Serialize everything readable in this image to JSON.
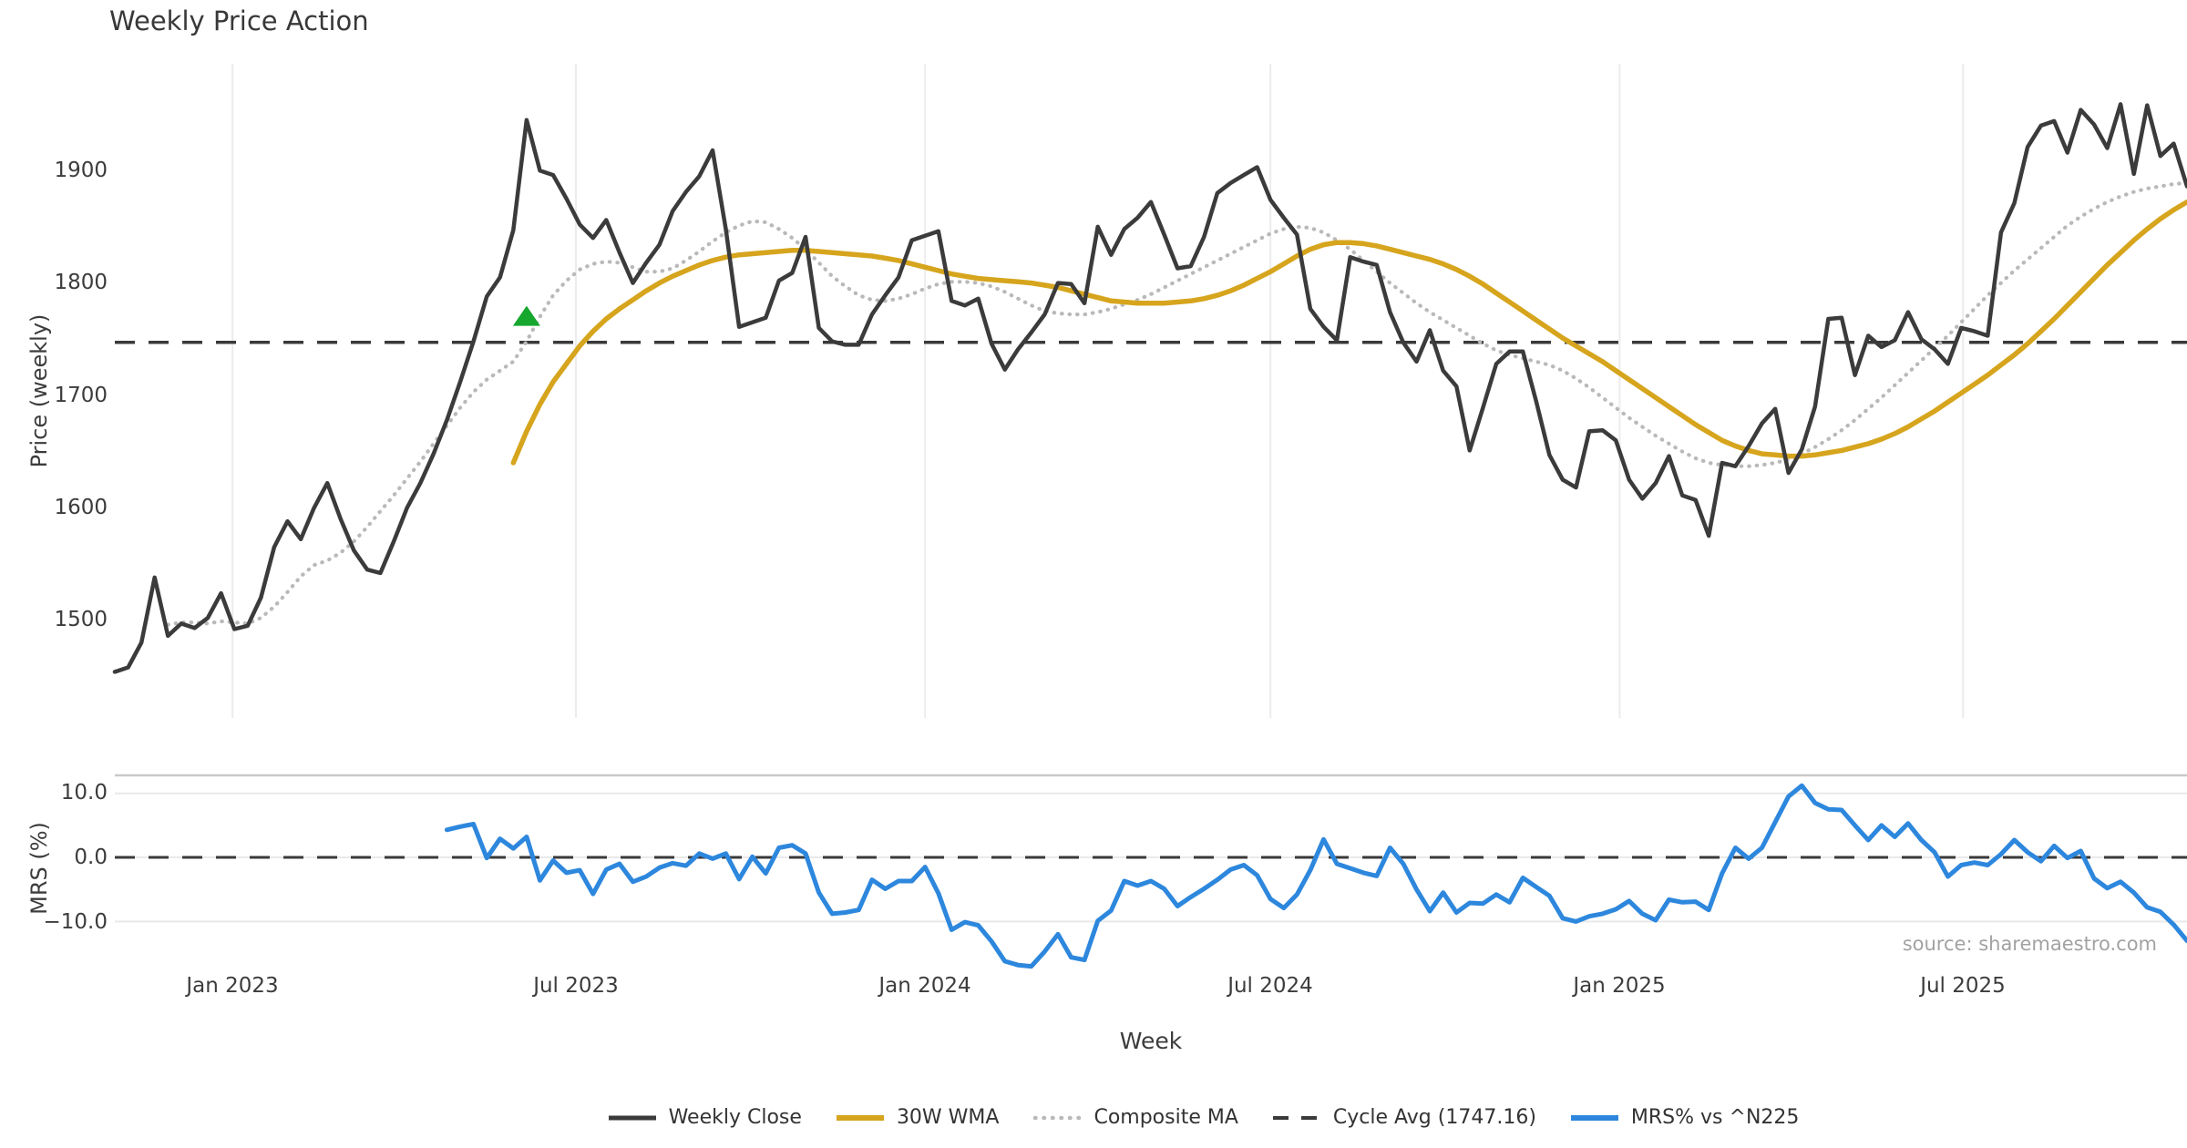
{
  "title": "Weekly Price Action",
  "source_credit": "source: sharemaestro.com",
  "chart_data": {
    "type": "line",
    "title": "Weekly Price Action",
    "xlabel": "Week",
    "frequency": "weekly",
    "start_date": "2022-10-31",
    "total_weeks": 157,
    "cycle_avg": 1747.16,
    "price_axis": {
      "label": "Price (weekly)",
      "tick_labels": [
        "1900",
        "1800",
        "1700",
        "1600",
        "1500"
      ],
      "tick_values": [
        1900,
        1800,
        1700,
        1600,
        1500
      ],
      "ylim": [
        1413,
        1995
      ],
      "grid": "vertical-only"
    },
    "mrs_axis": {
      "label": "MRS (%)",
      "tick_labels": [
        "10.0",
        "0.0",
        "−10.0"
      ],
      "tick_values": [
        10.0,
        0.0,
        -10.0
      ],
      "ylim": [
        -17.2,
        12.8
      ],
      "grid": "horizontal-only"
    },
    "x_ticks": [
      {
        "label": "Jan 2023",
        "week": 8.86
      },
      {
        "label": "Jul 2023",
        "week": 34.71
      },
      {
        "label": "Jan 2024",
        "week": 61.0
      },
      {
        "label": "Jul 2024",
        "week": 87.0
      },
      {
        "label": "Jan 2025",
        "week": 113.29
      },
      {
        "label": "Jul 2025",
        "week": 139.14
      }
    ],
    "legend": [
      {
        "label": "Weekly Close"
      },
      {
        "label": "30W WMA"
      },
      {
        "label": "Composite MA"
      },
      {
        "label": "Cycle Avg (1747.16)"
      },
      {
        "label": "MRS% vs ^N225"
      }
    ],
    "signal_marker": {
      "shape": "triangle-up",
      "color": "#16a72e",
      "week": 31,
      "price": 1770
    },
    "style": {
      "background": "#ffffff",
      "grid_color": "#ececec",
      "mrs_grid_color": "#e9e9e9",
      "mrs_top_spine": "#c9c9c9",
      "dashed_line_color": "#3a3a3a",
      "text_color": "#3c3c3c",
      "muted_text": "#a2a2a2"
    },
    "series": [
      {
        "name": "Weekly Close",
        "panel": "price",
        "style": "solid",
        "color": "#3b3b3b",
        "width": 4.5,
        "start_week": 0,
        "values": [
          1454,
          1458,
          1480,
          1538,
          1486,
          1497,
          1493,
          1502,
          1524,
          1492,
          1495,
          1520,
          1565,
          1588,
          1572,
          1600,
          1622,
          1590,
          1562,
          1545,
          1542,
          1570,
          1600,
          1622,
          1648,
          1678,
          1712,
          1748,
          1788,
          1805,
          1847,
          1945,
          1900,
          1896,
          1875,
          1852,
          1840,
          1856,
          1827,
          1800,
          1818,
          1834,
          1864,
          1881,
          1895,
          1918,
          1848,
          1761,
          1765,
          1769,
          1802,
          1809,
          1841,
          1760,
          1748,
          1745,
          1745,
          1772,
          1789,
          1805,
          1838,
          1842,
          1846,
          1784,
          1780,
          1786,
          1746,
          1723,
          1741,
          1756,
          1772,
          1800,
          1799,
          1782,
          1850,
          1825,
          1848,
          1858,
          1872,
          1843,
          1813,
          1815,
          1841,
          1880,
          1889,
          1896,
          1903,
          1874,
          1858,
          1843,
          1777,
          1761,
          1749,
          1823,
          1819,
          1816,
          1774,
          1747,
          1730,
          1758,
          1722,
          1708,
          1651,
          1689,
          1728,
          1739,
          1739,
          1695,
          1647,
          1625,
          1618,
          1668,
          1669,
          1660,
          1625,
          1608,
          1622,
          1646,
          1611,
          1607,
          1575,
          1640,
          1637,
          1655,
          1675,
          1688,
          1631,
          1652,
          1690,
          1768,
          1769,
          1718,
          1753,
          1743,
          1749,
          1774,
          1750,
          1741,
          1728,
          1760,
          1757,
          1753,
          1845,
          1871,
          1921,
          1940,
          1944,
          1916,
          1954,
          1941,
          1920,
          1959,
          1897,
          1958,
          1913,
          1924,
          1886
        ]
      },
      {
        "name": "30W WMA",
        "panel": "price",
        "style": "solid",
        "color": "#d6a51d",
        "width": 5.5,
        "start_week": 30,
        "values": [
          1640,
          1668,
          1692,
          1712,
          1728,
          1744,
          1757,
          1768,
          1777,
          1785,
          1793,
          1800,
          1806,
          1811,
          1816,
          1820,
          1823,
          1825,
          1826,
          1827,
          1828,
          1829,
          1829,
          1828,
          1827,
          1826,
          1825,
          1824,
          1822,
          1820,
          1817,
          1814,
          1811,
          1808,
          1806,
          1804,
          1803,
          1802,
          1801,
          1800,
          1798,
          1796,
          1793,
          1790,
          1787,
          1784,
          1783,
          1782,
          1782,
          1782,
          1783,
          1784,
          1786,
          1789,
          1793,
          1798,
          1804,
          1810,
          1817,
          1824,
          1830,
          1834,
          1836,
          1836,
          1835,
          1833,
          1830,
          1827,
          1824,
          1821,
          1817,
          1812,
          1806,
          1799,
          1791,
          1783,
          1775,
          1767,
          1759,
          1751,
          1744,
          1737,
          1730,
          1722,
          1714,
          1706,
          1698,
          1690,
          1682,
          1674,
          1667,
          1660,
          1655,
          1651,
          1648,
          1647,
          1646,
          1646,
          1647,
          1649,
          1651,
          1654,
          1657,
          1661,
          1666,
          1672,
          1679,
          1686,
          1694,
          1702,
          1710,
          1718,
          1727,
          1736,
          1746,
          1757,
          1768,
          1780,
          1792,
          1804,
          1816,
          1827,
          1838,
          1848,
          1857,
          1865,
          1872
        ]
      },
      {
        "name": "Composite MA",
        "panel": "price",
        "style": "dotted",
        "color": "#b9b9b9",
        "width": 4.2,
        "start_week": 4,
        "values": [
          1496,
          1498,
          1498,
          1497,
          1499,
          1498,
          1497,
          1502,
          1512,
          1525,
          1539,
          1549,
          1553,
          1560,
          1570,
          1583,
          1597,
          1611,
          1626,
          1641,
          1657,
          1673,
          1689,
          1703,
          1714,
          1722,
          1730,
          1748,
          1770,
          1789,
          1802,
          1812,
          1817,
          1819,
          1818,
          1814,
          1810,
          1810,
          1813,
          1820,
          1828,
          1837,
          1845,
          1851,
          1855,
          1854,
          1848,
          1840,
          1830,
          1818,
          1806,
          1797,
          1789,
          1785,
          1784,
          1786,
          1790,
          1795,
          1799,
          1801,
          1801,
          1800,
          1797,
          1792,
          1786,
          1780,
          1775,
          1773,
          1772,
          1772,
          1774,
          1777,
          1781,
          1785,
          1790,
          1796,
          1802,
          1808,
          1814,
          1820,
          1826,
          1832,
          1838,
          1844,
          1848,
          1850,
          1849,
          1845,
          1838,
          1830,
          1820,
          1810,
          1800,
          1791,
          1782,
          1774,
          1767,
          1760,
          1753,
          1746,
          1740,
          1736,
          1733,
          1730,
          1727,
          1722,
          1715,
          1707,
          1698,
          1689,
          1680,
          1672,
          1664,
          1657,
          1650,
          1644,
          1640,
          1638,
          1637,
          1637,
          1638,
          1640,
          1643,
          1648,
          1654,
          1661,
          1669,
          1678,
          1688,
          1698,
          1709,
          1720,
          1731,
          1742,
          1753,
          1765,
          1777,
          1789,
          1800,
          1811,
          1821,
          1831,
          1841,
          1851,
          1859,
          1866,
          1872,
          1877,
          1881,
          1884,
          1886,
          1888,
          1889
        ]
      },
      {
        "name": "MRS% vs ^N225",
        "panel": "mrs",
        "style": "solid",
        "color": "#2d87dd",
        "width": 5,
        "start_week": 25,
        "values": [
          4.3,
          4.8,
          5.2,
          -0.1,
          2.9,
          1.4,
          3.2,
          -3.6,
          -0.5,
          -2.4,
          -2.0,
          -5.7,
          -1.9,
          -1.0,
          -3.8,
          -3.0,
          -1.6,
          -0.9,
          -1.3,
          0.6,
          -0.2,
          0.6,
          -3.4,
          0.1,
          -2.5,
          1.5,
          1.9,
          0.6,
          -5.5,
          -8.8,
          -8.6,
          -8.2,
          -3.5,
          -4.9,
          -3.7,
          -3.7,
          -1.5,
          -5.6,
          -11.3,
          -10.1,
          -10.6,
          -13.1,
          -16.2,
          -16.8,
          -17.0,
          -14.7,
          -12.0,
          -15.6,
          -16.0,
          -9.9,
          -8.3,
          -3.7,
          -4.4,
          -3.7,
          -4.9,
          -7.6,
          -6.2,
          -4.9,
          -3.5,
          -1.9,
          -1.2,
          -2.8,
          -6.5,
          -7.9,
          -5.8,
          -2.0,
          2.8,
          -1.0,
          -1.7,
          -2.4,
          -2.9,
          1.5,
          -1.0,
          -5.0,
          -8.4,
          -5.5,
          -8.6,
          -7.1,
          -7.2,
          -5.8,
          -7.0,
          -3.2,
          -4.6,
          -6.0,
          -9.5,
          -10.0,
          -9.2,
          -8.8,
          -8.1,
          -6.8,
          -8.8,
          -9.8,
          -6.6,
          -7.0,
          -6.9,
          -8.2,
          -2.5,
          1.5,
          -0.2,
          1.5,
          5.5,
          9.5,
          11.2,
          8.5,
          7.5,
          7.4,
          5.0,
          2.7,
          5.0,
          3.2,
          5.3,
          2.7,
          0.8,
          -3.0,
          -1.2,
          -0.8,
          -1.2,
          0.5,
          2.7,
          0.8,
          -0.6,
          1.8,
          -0.1,
          1.0,
          -3.3,
          -4.8,
          -3.8,
          -5.5,
          -7.8,
          -8.5,
          -10.5,
          -13.0
        ]
      }
    ]
  }
}
